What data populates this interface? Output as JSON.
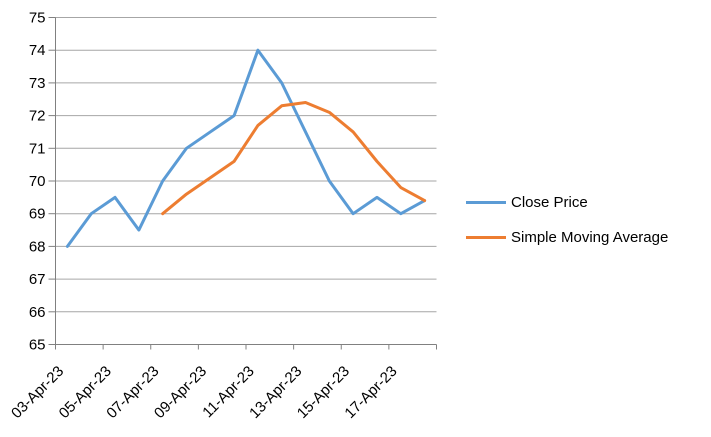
{
  "chart_data": {
    "type": "line",
    "x": [
      "03-Apr-23",
      "04-Apr-23",
      "05-Apr-23",
      "06-Apr-23",
      "07-Apr-23",
      "08-Apr-23",
      "09-Apr-23",
      "10-Apr-23",
      "11-Apr-23",
      "12-Apr-23",
      "13-Apr-23",
      "14-Apr-23",
      "15-Apr-23",
      "16-Apr-23",
      "17-Apr-23",
      "18-Apr-23"
    ],
    "x_tick_labels": [
      "03-Apr-23",
      "05-Apr-23",
      "07-Apr-23",
      "09-Apr-23",
      "11-Apr-23",
      "13-Apr-23",
      "15-Apr-23",
      "17-Apr-23"
    ],
    "x_label_interval": 2,
    "series": [
      {
        "name": "Close Price",
        "color": "#5B9BD5",
        "values": [
          68,
          69,
          69.5,
          68.5,
          70,
          71,
          71.5,
          72,
          74,
          73,
          71.5,
          70,
          69,
          69.5,
          69,
          69.4
        ]
      },
      {
        "name": "Simple Moving Average",
        "color": "#ED7D31",
        "values": [
          null,
          null,
          null,
          null,
          69,
          69.6,
          70.1,
          70.6,
          71.7,
          72.3,
          72.4,
          72.1,
          71.5,
          70.6,
          69.8,
          69.4
        ]
      }
    ],
    "title": "",
    "xlabel": "",
    "ylabel": "",
    "ylim": [
      65,
      75
    ],
    "y_step": 1,
    "y_tick_labels": [
      "65",
      "66",
      "67",
      "68",
      "69",
      "70",
      "71",
      "72",
      "73",
      "74",
      "75"
    ],
    "grid": "horizontal",
    "legend_position": "right",
    "gridline_color": "#A6A6A6",
    "axis_color": "#808080",
    "text_color": "#000000",
    "background_color": "#FFFFFF",
    "line_width": 3
  },
  "legend": {
    "items": [
      {
        "label": "Close Price"
      },
      {
        "label": "Simple Moving Average"
      }
    ]
  }
}
